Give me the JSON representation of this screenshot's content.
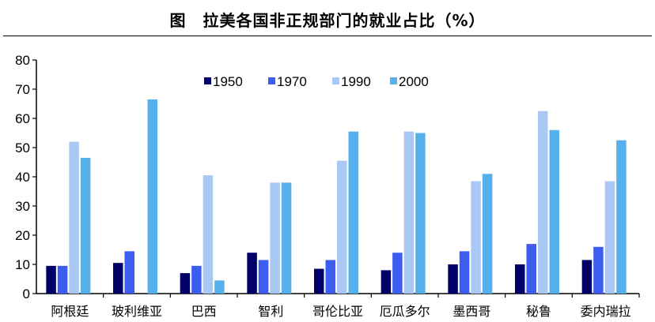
{
  "title": "图　拉美各国非正规部门的就业占比（%）",
  "chart_data": {
    "type": "bar",
    "title": "拉美各国非正规部门的就业占比（%）",
    "categories": [
      "阿根廷",
      "玻利维亚",
      "巴西",
      "智利",
      "哥伦比亚",
      "厄瓜多尔",
      "墨西哥",
      "秘鲁",
      "委内瑞拉"
    ],
    "series": [
      {
        "name": "1950",
        "color": "#000066",
        "values": [
          9.5,
          10.5,
          7.0,
          14.0,
          8.5,
          8.0,
          10.0,
          10.0,
          11.5
        ]
      },
      {
        "name": "1970",
        "color": "#3d5cf0",
        "values": [
          9.5,
          14.5,
          9.5,
          11.5,
          11.5,
          14.0,
          14.5,
          17.0,
          16.0
        ]
      },
      {
        "name": "1990",
        "color": "#a9c8f5",
        "values": [
          52.0,
          null,
          40.5,
          38.0,
          45.5,
          55.5,
          38.5,
          62.5,
          38.5
        ]
      },
      {
        "name": "2000",
        "color": "#55b0ec",
        "values": [
          46.5,
          66.5,
          4.5,
          38.0,
          55.5,
          55.0,
          41.0,
          56.0,
          52.5
        ]
      }
    ],
    "yticks": [
      "0",
      "10",
      "20",
      "30",
      "40",
      "50",
      "60",
      "70",
      "80"
    ],
    "ylim": [
      0,
      80
    ],
    "grid": false,
    "legend_position": "top-center"
  }
}
